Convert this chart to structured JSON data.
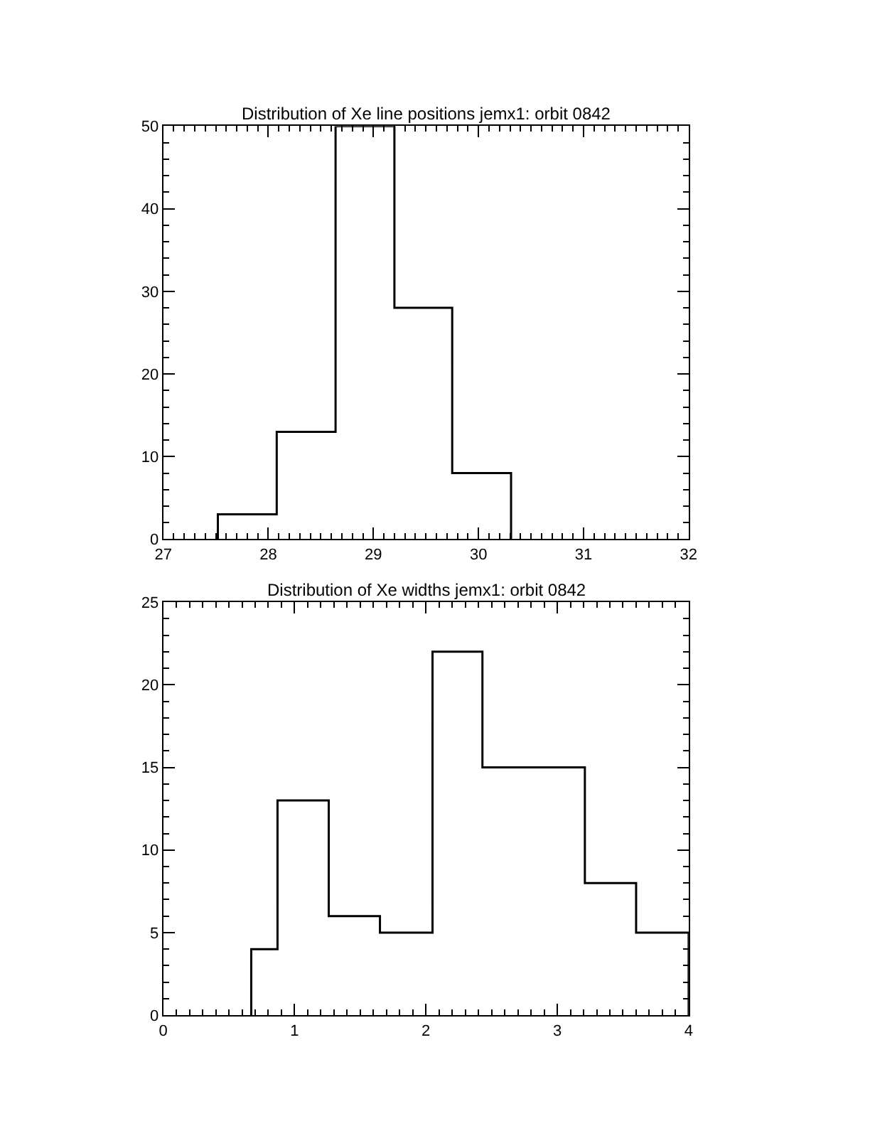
{
  "chart_data": [
    {
      "type": "histogram",
      "title": "Distribution of Xe line positions jemx1: orbit 0842",
      "bins": [
        27.52,
        28.08,
        28.64,
        29.2,
        29.75,
        30.31
      ],
      "values": [
        3,
        13,
        50,
        28,
        8
      ],
      "color": "#000000",
      "xlim": [
        27,
        32
      ],
      "xticks": [
        27,
        28,
        29,
        30,
        31,
        32
      ],
      "ylim": [
        0,
        50
      ],
      "yticks": [
        0,
        10,
        20,
        30,
        40,
        50
      ]
    },
    {
      "type": "histogram",
      "title": "Distribution of Xe widths jemx1: orbit 0842",
      "bins": [
        0.67,
        0.87,
        1.26,
        1.65,
        2.05,
        2.43,
        2.82,
        3.21,
        3.6,
        4.0
      ],
      "values": [
        4,
        13,
        6,
        5,
        22,
        15,
        15,
        8,
        5
      ],
      "color": "#000000",
      "xlim": [
        0,
        4
      ],
      "xticks": [
        0,
        1,
        2,
        3,
        4
      ],
      "ylim": [
        0,
        25
      ],
      "yticks": [
        0,
        5,
        10,
        15,
        20,
        25
      ]
    }
  ]
}
